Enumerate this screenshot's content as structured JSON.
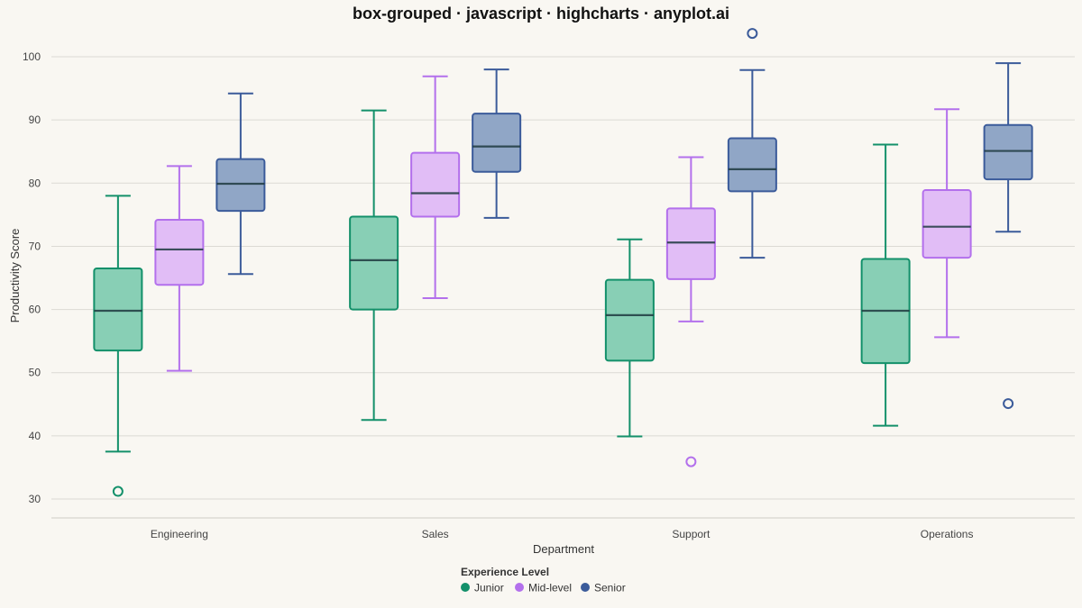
{
  "chart_data": {
    "type": "box",
    "title": "box-grouped · javascript · highcharts · anyplot.ai",
    "xlabel": "Department",
    "ylabel": "Productivity Score",
    "ylim": [
      27,
      104
    ],
    "yticks": [
      30,
      40,
      50,
      60,
      70,
      80,
      90,
      100
    ],
    "categories": [
      "Engineering",
      "Sales",
      "Support",
      "Operations"
    ],
    "grid": true,
    "legend": {
      "title": "Experience Level",
      "position": "bottom-center"
    },
    "series": [
      {
        "name": "Junior",
        "color": "#13906a",
        "fill": "#88cfb5",
        "boxes": [
          {
            "low": 37.5,
            "q1": 53.5,
            "median": 59.8,
            "q3": 66.5,
            "high": 78.0
          },
          {
            "low": 42.5,
            "q1": 60.0,
            "median": 67.8,
            "q3": 74.7,
            "high": 91.5
          },
          {
            "low": 39.9,
            "q1": 51.9,
            "median": 59.1,
            "q3": 64.7,
            "high": 71.1
          },
          {
            "low": 41.6,
            "q1": 51.5,
            "median": 59.8,
            "q3": 68.0,
            "high": 86.1
          }
        ],
        "outliers": [
          {
            "category": "Engineering",
            "value": 31.2
          }
        ]
      },
      {
        "name": "Mid-level",
        "color": "#b370ec",
        "fill": "#e1bdf6",
        "boxes": [
          {
            "low": 50.3,
            "q1": 63.9,
            "median": 69.5,
            "q3": 74.2,
            "high": 82.7
          },
          {
            "low": 61.8,
            "q1": 74.7,
            "median": 78.4,
            "q3": 84.8,
            "high": 96.9
          },
          {
            "low": 58.1,
            "q1": 64.8,
            "median": 70.6,
            "q3": 76.0,
            "high": 84.1
          },
          {
            "low": 55.6,
            "q1": 68.2,
            "median": 73.1,
            "q3": 78.9,
            "high": 91.7
          }
        ],
        "outliers": [
          {
            "category": "Support",
            "value": 35.9
          }
        ]
      },
      {
        "name": "Senior",
        "color": "#3b5b9a",
        "fill": "#90a6c6",
        "boxes": [
          {
            "low": 65.6,
            "q1": 75.6,
            "median": 79.9,
            "q3": 83.8,
            "high": 94.2
          },
          {
            "low": 74.5,
            "q1": 81.8,
            "median": 85.8,
            "q3": 91.0,
            "high": 98.0
          },
          {
            "low": 68.2,
            "q1": 78.7,
            "median": 82.2,
            "q3": 87.1,
            "high": 97.9
          },
          {
            "low": 72.3,
            "q1": 80.6,
            "median": 85.1,
            "q3": 89.2,
            "high": 99.0
          }
        ],
        "outliers": [
          {
            "category": "Support",
            "value": 103.7
          },
          {
            "category": "Operations",
            "value": 45.1
          }
        ]
      }
    ]
  }
}
